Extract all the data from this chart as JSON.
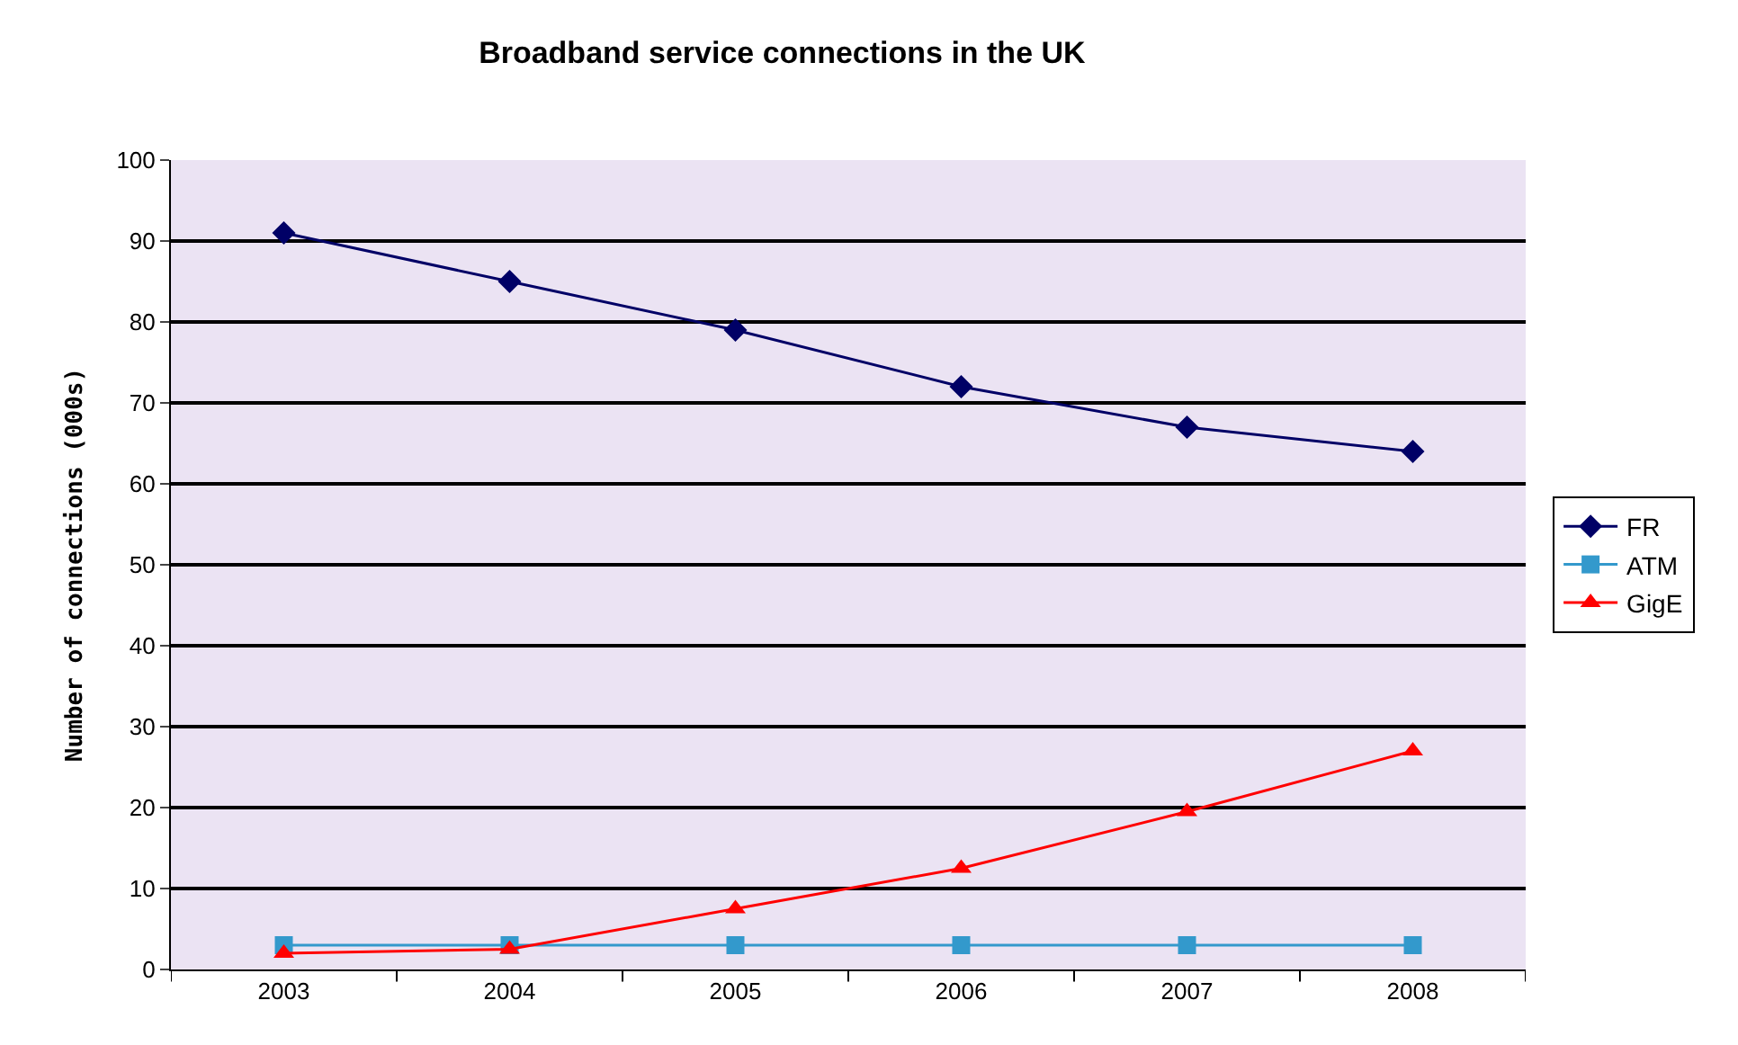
{
  "chart_data": {
    "type": "line",
    "title": "Broadband service connections in the UK",
    "ylabel": "Number of connections (000s)",
    "categories": [
      "2003",
      "2004",
      "2005",
      "2006",
      "2007",
      "2008"
    ],
    "series": [
      {
        "name": "FR",
        "color": "#000066",
        "marker": "diamond",
        "values": [
          91,
          85,
          79,
          72,
          67,
          64
        ]
      },
      {
        "name": "ATM",
        "color": "#3399cc",
        "marker": "square",
        "values": [
          3,
          3,
          3,
          3,
          3,
          3
        ]
      },
      {
        "name": "GigE",
        "color": "#ff0000",
        "marker": "triangle",
        "values": [
          2,
          2.5,
          7.5,
          12.5,
          19.5,
          27
        ]
      }
    ],
    "ylim": [
      0,
      100
    ],
    "yticks": [
      0,
      10,
      20,
      30,
      40,
      50,
      60,
      70,
      80,
      90,
      100
    ],
    "grid": "y",
    "legend": "right"
  }
}
